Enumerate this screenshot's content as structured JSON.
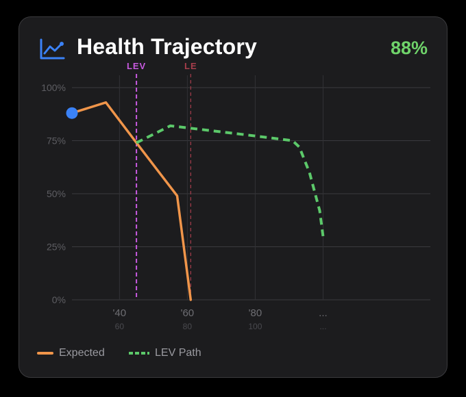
{
  "header": {
    "title": "Health Trajectory",
    "percent": "88%",
    "icon": "line-chart-icon",
    "accent_color": "#3b82f6",
    "percent_color": "#6fd36a"
  },
  "chart_data": {
    "type": "line",
    "x_range": [
      1926,
      2030
    ],
    "ylim": [
      0,
      100
    ],
    "y_ticks": [
      0,
      25,
      50,
      75,
      100
    ],
    "y_tick_labels": [
      "0%",
      "25%",
      "50%",
      "75%",
      "100%"
    ],
    "x_ticks": [
      {
        "x": 1940,
        "label": "'40",
        "sublabel": "60"
      },
      {
        "x": 1960,
        "label": "'60",
        "sublabel": "80"
      },
      {
        "x": 1980,
        "label": "'80",
        "sublabel": "100"
      },
      {
        "x": 2000,
        "label": "...",
        "sublabel": "..."
      }
    ],
    "grid": true,
    "legend_position": "bottom-left",
    "series": [
      {
        "name": "Expected",
        "color": "#f0954a",
        "style": "solid",
        "points": [
          [
            1926,
            88
          ],
          [
            1936,
            93
          ],
          [
            1945,
            74
          ],
          [
            1957,
            49
          ],
          [
            1961,
            0
          ]
        ]
      },
      {
        "name": "LEV Path",
        "color": "#5cc96a",
        "style": "dashed",
        "points": [
          [
            1945,
            74
          ],
          [
            1955,
            82
          ],
          [
            1976,
            78
          ],
          [
            1991,
            75
          ],
          [
            1993,
            72
          ],
          [
            1996,
            60
          ],
          [
            1999,
            42
          ],
          [
            2000,
            30
          ]
        ]
      }
    ],
    "markers": [
      {
        "label": "LEV",
        "x": 1945,
        "color": "#c85ae0",
        "style": "dashed"
      },
      {
        "label": "LE",
        "x": 1961,
        "color": "#a83e4c",
        "style": "dashed"
      }
    ],
    "current_point": {
      "x": 1926,
      "y": 88,
      "color": "#3b82f6"
    }
  }
}
